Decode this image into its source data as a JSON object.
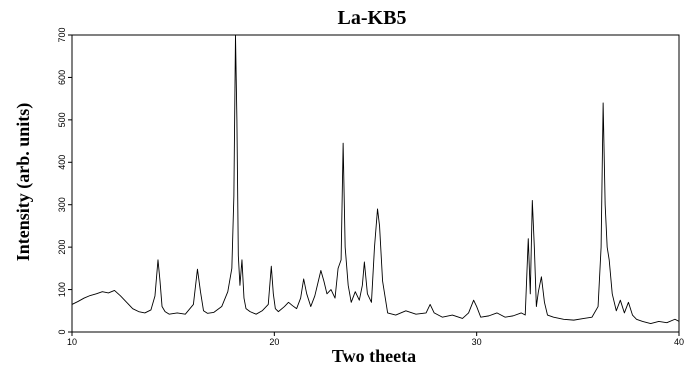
{
  "chart_data": {
    "type": "line",
    "title": "La-KB5",
    "xlabel": "Two theeta",
    "ylabel": "Intensity (arb. units)",
    "xlim": [
      10,
      40
    ],
    "ylim": [
      0,
      700
    ],
    "x_ticks": [
      "10",
      "20",
      "30",
      "40"
    ],
    "y_ticks": [
      "0",
      "100",
      "200",
      "300",
      "400",
      "500",
      "600",
      "700"
    ],
    "grid": false,
    "legend": "none",
    "series": [
      {
        "color": "#000000",
        "x": [
          10.0,
          10.3,
          10.6,
          10.9,
          11.2,
          11.5,
          11.8,
          12.1,
          12.4,
          12.7,
          13.0,
          13.3,
          13.6,
          13.9,
          14.1,
          14.25,
          14.35,
          14.45,
          14.6,
          14.8,
          15.2,
          15.6,
          16.0,
          16.2,
          16.35,
          16.5,
          16.7,
          17.0,
          17.4,
          17.7,
          17.9,
          18.0,
          18.08,
          18.15,
          18.22,
          18.3,
          18.4,
          18.5,
          18.6,
          18.8,
          19.1,
          19.4,
          19.7,
          19.85,
          19.95,
          20.05,
          20.2,
          20.5,
          20.7,
          20.9,
          21.1,
          21.3,
          21.45,
          21.6,
          21.8,
          22.0,
          22.2,
          22.3,
          22.45,
          22.6,
          22.8,
          23.0,
          23.15,
          23.3,
          23.4,
          23.5,
          23.65,
          23.8,
          24.0,
          24.2,
          24.35,
          24.45,
          24.6,
          24.8,
          24.95,
          25.1,
          25.2,
          25.35,
          25.6,
          26.0,
          26.5,
          27.0,
          27.5,
          27.7,
          27.9,
          28.3,
          28.8,
          29.3,
          29.6,
          29.85,
          30.0,
          30.2,
          30.6,
          31.0,
          31.4,
          31.8,
          32.2,
          32.4,
          32.55,
          32.65,
          32.75,
          32.85,
          32.95,
          33.05,
          33.2,
          33.35,
          33.5,
          33.8,
          34.3,
          34.8,
          35.3,
          35.7,
          36.0,
          36.15,
          36.25,
          36.35,
          36.45,
          36.55,
          36.7,
          36.9,
          37.1,
          37.3,
          37.5,
          37.7,
          37.9,
          38.2,
          38.6,
          39.0,
          39.4,
          39.8,
          40.0
        ],
        "y": [
          65,
          72,
          80,
          86,
          90,
          95,
          92,
          98,
          85,
          70,
          55,
          48,
          45,
          52,
          85,
          170,
          120,
          60,
          48,
          42,
          45,
          42,
          65,
          148,
          95,
          50,
          44,
          46,
          60,
          95,
          150,
          320,
          700,
          500,
          180,
          110,
          170,
          80,
          55,
          48,
          42,
          50,
          65,
          155,
          90,
          55,
          48,
          60,
          70,
          62,
          55,
          80,
          125,
          90,
          60,
          85,
          125,
          145,
          120,
          90,
          100,
          80,
          150,
          170,
          445,
          200,
          110,
          70,
          95,
          75,
          110,
          165,
          90,
          70,
          200,
          290,
          250,
          120,
          45,
          40,
          50,
          42,
          45,
          65,
          45,
          35,
          40,
          32,
          45,
          75,
          60,
          35,
          38,
          45,
          35,
          38,
          45,
          40,
          220,
          90,
          310,
          200,
          60,
          95,
          130,
          70,
          40,
          35,
          30,
          28,
          32,
          35,
          60,
          200,
          540,
          300,
          200,
          170,
          90,
          50,
          75,
          45,
          70,
          40,
          30,
          25,
          20,
          25,
          22,
          30,
          25
        ]
      }
    ]
  }
}
